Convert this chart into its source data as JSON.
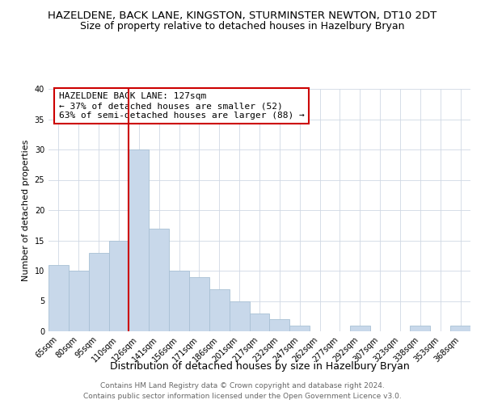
{
  "title": "HAZELDENE, BACK LANE, KINGSTON, STURMINSTER NEWTON, DT10 2DT",
  "subtitle": "Size of property relative to detached houses in Hazelbury Bryan",
  "xlabel": "Distribution of detached houses by size in Hazelbury Bryan",
  "ylabel": "Number of detached properties",
  "bar_color": "#c8d8ea",
  "bar_edgecolor": "#a8c0d4",
  "bin_labels": [
    "65sqm",
    "80sqm",
    "95sqm",
    "110sqm",
    "126sqm",
    "141sqm",
    "156sqm",
    "171sqm",
    "186sqm",
    "201sqm",
    "217sqm",
    "232sqm",
    "247sqm",
    "262sqm",
    "277sqm",
    "292sqm",
    "307sqm",
    "323sqm",
    "338sqm",
    "353sqm",
    "368sqm"
  ],
  "bar_heights": [
    11,
    10,
    13,
    15,
    30,
    17,
    10,
    9,
    7,
    5,
    3,
    2,
    1,
    0,
    0,
    1,
    0,
    0,
    1,
    0,
    1
  ],
  "vline_index": 4,
  "vline_color": "#cc0000",
  "annotation_line1": "HAZELDENE BACK LANE: 127sqm",
  "annotation_line2": "← 37% of detached houses are smaller (52)",
  "annotation_line3": "63% of semi-detached houses are larger (88) →",
  "annotation_box_edgecolor": "#cc0000",
  "annotation_box_facecolor": "#ffffff",
  "ylim": [
    0,
    40
  ],
  "yticks": [
    0,
    5,
    10,
    15,
    20,
    25,
    30,
    35,
    40
  ],
  "footer_line1": "Contains HM Land Registry data © Crown copyright and database right 2024.",
  "footer_line2": "Contains public sector information licensed under the Open Government Licence v3.0.",
  "title_fontsize": 9.5,
  "subtitle_fontsize": 9,
  "xlabel_fontsize": 9,
  "ylabel_fontsize": 8,
  "tick_fontsize": 7,
  "annotation_fontsize": 8,
  "footer_fontsize": 6.5
}
